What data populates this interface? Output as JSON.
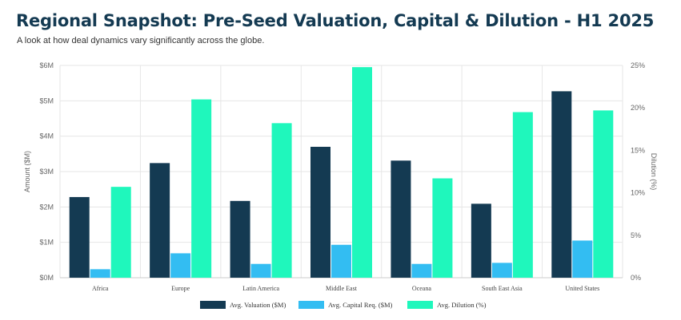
{
  "header": {
    "title": "Regional Snapshot: Pre-Seed Valuation, Capital & Dilution - H1 2025",
    "subtitle": "A look at how deal dynamics vary significantly across the globe."
  },
  "chart_data": {
    "type": "bar",
    "categories": [
      "Africa",
      "Europe",
      "Latin America",
      "Middle East",
      "Oceana",
      "South East Asia",
      "United States"
    ],
    "series": [
      {
        "name": "Avg. Valuation ($M)",
        "axis": "left",
        "color": "#143a52",
        "values": [
          2.28,
          3.24,
          2.17,
          3.7,
          3.31,
          2.09,
          5.27
        ]
      },
      {
        "name": "Avg. Capital Req. ($M)",
        "axis": "left",
        "color": "#33bdf2",
        "values": [
          0.24,
          0.69,
          0.39,
          0.93,
          0.39,
          0.42,
          1.05
        ]
      },
      {
        "name": "Avg. Dilution (%)",
        "axis": "right",
        "color": "#1ff7bc",
        "values": [
          10.7,
          21.0,
          18.2,
          24.8,
          11.7,
          19.5,
          19.7
        ]
      }
    ],
    "y_left": {
      "label": "Amount ($M)",
      "min": 0,
      "max": 6,
      "ticks": [
        0,
        1,
        2,
        3,
        4,
        5,
        6
      ],
      "tick_labels": [
        "$0M",
        "$1M",
        "$2M",
        "$3M",
        "$4M",
        "$5M",
        "$6M"
      ]
    },
    "y_right": {
      "label": "Dilution (%)",
      "min": 0,
      "max": 25,
      "ticks": [
        0,
        5,
        10,
        15,
        20,
        25
      ],
      "tick_labels": [
        "0%",
        "5%",
        "10%",
        "15%",
        "20%",
        "25%"
      ]
    },
    "grid": true,
    "legend_position": "bottom"
  }
}
